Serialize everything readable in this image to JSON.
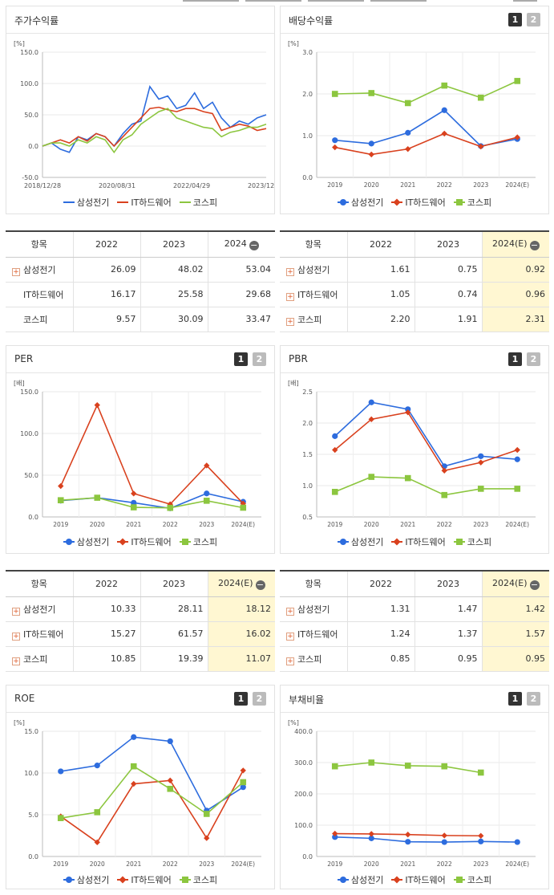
{
  "colors": {
    "samsung": "#2d6cde",
    "ithw": "#d9411e",
    "kospi": "#8cc63f"
  },
  "legend": [
    "삼성전기",
    "IT하드웨어",
    "코스피"
  ],
  "panels": {
    "stock": {
      "title": "주가수익률"
    },
    "dividend": {
      "title": "배당수익률",
      "b1": "1",
      "b2": "2"
    },
    "per": {
      "title": "PER",
      "b1": "1",
      "b2": "2"
    },
    "pbr": {
      "title": "PBR",
      "b1": "1",
      "b2": "2"
    },
    "roe": {
      "title": "ROE",
      "b1": "1",
      "b2": "2"
    },
    "debt": {
      "title": "부채비율",
      "b1": "1",
      "b2": "2"
    }
  },
  "tables": {
    "stock": {
      "head": [
        "항목",
        "2022",
        "2023",
        "2024"
      ],
      "highlight_last": false,
      "plus": [
        true,
        false,
        false
      ],
      "rows": [
        [
          "삼성전기",
          "26.09",
          "48.02",
          "53.04"
        ],
        [
          "IT하드웨어",
          "16.17",
          "25.58",
          "29.68"
        ],
        [
          "코스피",
          "9.57",
          "30.09",
          "33.47"
        ]
      ]
    },
    "dividend": {
      "head": [
        "항목",
        "2022",
        "2023",
        "2024(E)"
      ],
      "highlight_last": true,
      "plus": [
        true,
        true,
        true
      ],
      "rows": [
        [
          "삼성전기",
          "1.61",
          "0.75",
          "0.92"
        ],
        [
          "IT하드웨어",
          "1.05",
          "0.74",
          "0.96"
        ],
        [
          "코스피",
          "2.20",
          "1.91",
          "2.31"
        ]
      ]
    },
    "per": {
      "head": [
        "항목",
        "2022",
        "2023",
        "2024(E)"
      ],
      "highlight_last": true,
      "plus": [
        true,
        true,
        true
      ],
      "rows": [
        [
          "삼성전기",
          "10.33",
          "28.11",
          "18.12"
        ],
        [
          "IT하드웨어",
          "15.27",
          "61.57",
          "16.02"
        ],
        [
          "코스피",
          "10.85",
          "19.39",
          "11.07"
        ]
      ]
    },
    "pbr": {
      "head": [
        "항목",
        "2022",
        "2023",
        "2024(E)"
      ],
      "highlight_last": true,
      "plus": [
        true,
        true,
        true
      ],
      "rows": [
        [
          "삼성전기",
          "1.31",
          "1.47",
          "1.42"
        ],
        [
          "IT하드웨어",
          "1.24",
          "1.37",
          "1.57"
        ],
        [
          "코스피",
          "0.85",
          "0.95",
          "0.95"
        ]
      ]
    }
  },
  "chart_data": [
    {
      "id": "stock",
      "type": "line",
      "unit": "[%]",
      "yticks": [
        "150.0",
        "100.0",
        "50.0",
        "0.0",
        "-50.0"
      ],
      "ylim": [
        -50,
        150
      ],
      "xticks": [
        "2018/12/28",
        "2020/08/31",
        "2022/04/29",
        "2023/12/28"
      ],
      "x": [
        0,
        4,
        8,
        12,
        16,
        20,
        24,
        28,
        32,
        36,
        40,
        44,
        48,
        52,
        56,
        60,
        64,
        68,
        72,
        76,
        80,
        84,
        88,
        92,
        96,
        100
      ],
      "series": [
        {
          "name": "삼성전기",
          "values": [
            0,
            5,
            -5,
            -10,
            15,
            10,
            20,
            15,
            0,
            20,
            35,
            40,
            95,
            75,
            80,
            60,
            65,
            85,
            60,
            70,
            45,
            30,
            40,
            35,
            45,
            50
          ]
        },
        {
          "name": "IT하드웨어",
          "values": [
            0,
            5,
            10,
            5,
            15,
            8,
            20,
            15,
            0,
            15,
            30,
            45,
            60,
            62,
            58,
            55,
            60,
            60,
            55,
            52,
            25,
            30,
            35,
            32,
            25,
            28
          ]
        },
        {
          "name": "코스피",
          "values": [
            0,
            5,
            5,
            0,
            10,
            5,
            15,
            10,
            -10,
            10,
            18,
            35,
            45,
            55,
            60,
            45,
            40,
            35,
            30,
            28,
            15,
            22,
            25,
            30,
            30,
            35
          ]
        }
      ]
    },
    {
      "id": "dividend",
      "type": "line",
      "unit": "[%]",
      "yticks": [
        "3.0",
        "2.0",
        "1.0",
        "0.0"
      ],
      "ylim": [
        0,
        3
      ],
      "categories": [
        "2019",
        "2020",
        "2021",
        "2022",
        "2023",
        "2024(E)"
      ],
      "series": [
        {
          "name": "삼성전기",
          "values": [
            0.89,
            0.81,
            1.07,
            1.61,
            0.75,
            0.92
          ]
        },
        {
          "name": "IT하드웨어",
          "values": [
            0.72,
            0.55,
            0.68,
            1.05,
            0.74,
            0.96
          ]
        },
        {
          "name": "코스피",
          "values": [
            2.0,
            2.02,
            1.78,
            2.2,
            1.91,
            2.31
          ]
        }
      ]
    },
    {
      "id": "per",
      "type": "line",
      "unit": "[배]",
      "yticks": [
        "150.0",
        "100.0",
        "50.0",
        "0.0"
      ],
      "ylim": [
        0,
        150
      ],
      "categories": [
        "2019",
        "2020",
        "2021",
        "2022",
        "2023",
        "2024(E)"
      ],
      "series": [
        {
          "name": "삼성전기",
          "values": [
            19.5,
            23,
            17,
            10.33,
            28.11,
            18.12
          ]
        },
        {
          "name": "IT하드웨어",
          "values": [
            37,
            134,
            28,
            15.27,
            61.57,
            16.02
          ]
        },
        {
          "name": "코스피",
          "values": [
            20,
            23,
            11.5,
            10.85,
            19.39,
            11.07
          ]
        }
      ]
    },
    {
      "id": "pbr",
      "type": "line",
      "unit": "[배]",
      "yticks": [
        "2.5",
        "2.0",
        "1.5",
        "1.0",
        "0.5"
      ],
      "ylim": [
        0.5,
        2.5
      ],
      "categories": [
        "2019",
        "2020",
        "2021",
        "2022",
        "2023",
        "2024(E)"
      ],
      "series": [
        {
          "name": "삼성전기",
          "values": [
            1.79,
            2.33,
            2.22,
            1.31,
            1.47,
            1.42
          ]
        },
        {
          "name": "IT하드웨어",
          "values": [
            1.57,
            2.06,
            2.17,
            1.24,
            1.37,
            1.57
          ]
        },
        {
          "name": "코스피",
          "values": [
            0.9,
            1.14,
            1.12,
            0.85,
            0.95,
            0.95
          ]
        }
      ]
    },
    {
      "id": "roe",
      "type": "line",
      "unit": "[%]",
      "yticks": [
        "15.0",
        "10.0",
        "5.0",
        "0.0"
      ],
      "ylim": [
        0,
        15
      ],
      "categories": [
        "2019",
        "2020",
        "2021",
        "2022",
        "2023",
        "2024(E)"
      ],
      "series": [
        {
          "name": "삼성전기",
          "values": [
            10.2,
            10.9,
            14.3,
            13.8,
            5.5,
            8.3
          ]
        },
        {
          "name": "IT하드웨어",
          "values": [
            4.8,
            1.7,
            8.7,
            9.1,
            2.2,
            10.3
          ]
        },
        {
          "name": "코스피",
          "values": [
            4.6,
            5.3,
            10.8,
            8.1,
            5.1,
            8.9
          ]
        }
      ]
    },
    {
      "id": "debt",
      "type": "line",
      "unit": "[%]",
      "yticks": [
        "400.0",
        "300.0",
        "200.0",
        "100.0",
        "0.0"
      ],
      "ylim": [
        0,
        400
      ],
      "categories": [
        "2019",
        "2020",
        "2021",
        "2022",
        "2023",
        "2024(E)"
      ],
      "series": [
        {
          "name": "삼성전기",
          "values": [
            62,
            58,
            47,
            46,
            48,
            46
          ]
        },
        {
          "name": "IT하드웨어",
          "values": [
            73,
            72,
            70,
            67,
            66,
            null
          ]
        },
        {
          "name": "코스피",
          "values": [
            288,
            300,
            290,
            288,
            268,
            null
          ]
        }
      ]
    }
  ]
}
